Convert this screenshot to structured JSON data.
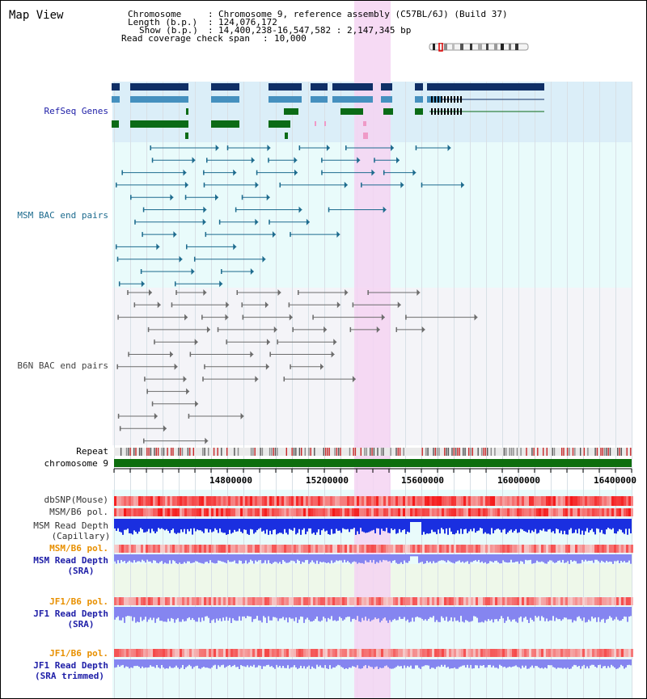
{
  "header": {
    "view_title": "Map View",
    "chromosome_key": "Chromosome",
    "chromosome_value": "Chromosome 9, reference assembly (C57BL/6J) (Build 37)",
    "length_key": "Length (b.p.)",
    "length_value": "124,076,172",
    "show_key": "Show (b.p.)",
    "show_value": "14,400,238-16,547,582 : 2,147,345 bp",
    "coverage_key": "Read coverage check span",
    "coverage_value": "10,000"
  },
  "tracks": {
    "refseq": "RefSeq Genes",
    "msm_bac": "MSM BAC end pairs",
    "b6n_bac": "B6N BAC end pairs",
    "repeat": "Repeat",
    "chromosome": "chromosome 9",
    "dbsnp": "dbSNP(Mouse)",
    "msm_b6_pol": "MSM/B6 pol.",
    "msm_depth_cap_1": "MSM Read Depth",
    "msm_depth_cap_2": "(Capillary)",
    "msm_b6_pol_2": "MSM/B6 pol.",
    "msm_depth_sra_1": "MSM Read Depth",
    "msm_depth_sra_2": "(SRA)",
    "jf1_pol": "JF1/B6 pol.",
    "jf1_depth_1": "JF1 Read Depth",
    "jf1_depth_2": "(SRA)",
    "jf1_pol_2": "JF1/B6 pol.",
    "jf1_trim_1": "JF1 Read Depth",
    "jf1_trim_2": "(SRA trimmed)"
  },
  "axis": {
    "ticks": [
      "14800000",
      "15200000",
      "15600000",
      "16000000",
      "16400000"
    ]
  },
  "colors": {
    "refseq_bg": "#dbeef8",
    "msm_bg": "#e9fbfb",
    "b6n_bg": "#f4f4f8",
    "highlight": "#f7dcf4",
    "gene_dark": "#0f2f66",
    "gene_mid": "#4590bf",
    "gene_green": "#0b6b16",
    "msm_line": "#1d6b8e",
    "b6n_line": "#6c6c6c",
    "chrom_bar": "#0d6e0d",
    "depth_blue": "#1a2fe0",
    "depth_light": "#8585f0",
    "label_blue": "#2020a8",
    "label_orange": "#e89000"
  }
}
